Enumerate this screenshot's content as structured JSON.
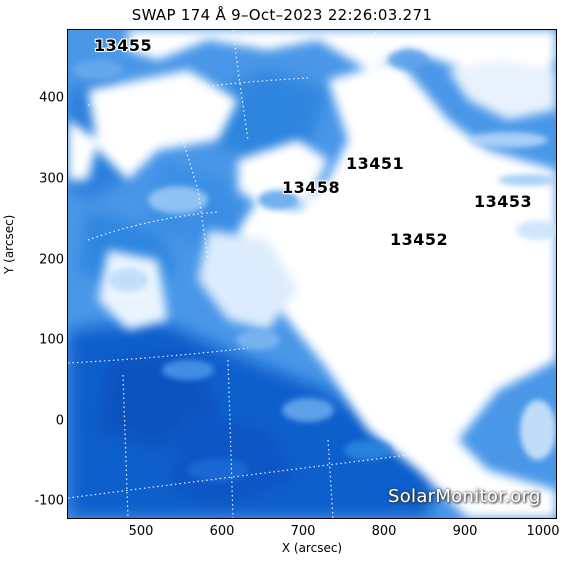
{
  "title": "SWAP 174 Å  9–Oct–2023 22:26:03.271",
  "axes": {
    "xlabel": "X (arcsec)",
    "ylabel": "Y (arcsec)",
    "xlim": [
      410,
      1010
    ],
    "ylim": [
      -120,
      480
    ],
    "xticks": [
      "500",
      "600",
      "700",
      "800",
      "900",
      "1000"
    ],
    "yticks": [
      "-100",
      "0",
      "100",
      "200",
      "300",
      "400"
    ]
  },
  "active_regions": [
    {
      "id": "13455",
      "x": 440,
      "y": 450
    },
    {
      "id": "13451",
      "x": 790,
      "y": 315
    },
    {
      "id": "13458",
      "x": 700,
      "y": 285
    },
    {
      "id": "13453",
      "x": 960,
      "y": 270
    },
    {
      "id": "13452",
      "x": 830,
      "y": 225
    }
  ],
  "watermark": "SolarMonitor.org",
  "colors": {
    "deep": "#0a58c8",
    "mid": "#3d8ee6",
    "light": "#8dc1f5",
    "bright": "#ffffff"
  }
}
